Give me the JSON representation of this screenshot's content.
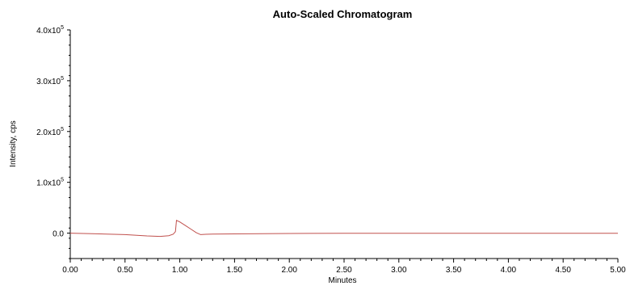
{
  "chart_data": {
    "type": "line",
    "title": "Auto-Scaled Chromatogram",
    "xlabel": "Minutes",
    "ylabel": "Intensity, cps",
    "xlim": [
      0,
      5
    ],
    "ylim": [
      -50000,
      400000
    ],
    "grid": false,
    "x_ticks": [
      {
        "value": 0.0,
        "label": "0.00"
      },
      {
        "value": 0.5,
        "label": "0.50"
      },
      {
        "value": 1.0,
        "label": "1.00"
      },
      {
        "value": 1.5,
        "label": "1.50"
      },
      {
        "value": 2.0,
        "label": "2.00"
      },
      {
        "value": 2.5,
        "label": "2.50"
      },
      {
        "value": 3.0,
        "label": "3.00"
      },
      {
        "value": 3.5,
        "label": "3.50"
      },
      {
        "value": 4.0,
        "label": "4.00"
      },
      {
        "value": 4.5,
        "label": "4.50"
      },
      {
        "value": 5.0,
        "label": "5.00"
      }
    ],
    "y_ticks": [
      {
        "value": 0,
        "label": "0.0",
        "exp": ""
      },
      {
        "value": 100000,
        "label": "1.0x10",
        "exp": "5"
      },
      {
        "value": 200000,
        "label": "2.0x10",
        "exp": "5"
      },
      {
        "value": 300000,
        "label": "3.0x10",
        "exp": "5"
      },
      {
        "value": 400000,
        "label": "4.0x10",
        "exp": "5"
      }
    ],
    "series": [
      {
        "color": "#c0504d",
        "x": [
          0.0,
          0.2,
          0.5,
          0.7,
          0.82,
          0.9,
          0.94,
          0.96,
          0.97,
          1.0,
          1.05,
          1.1,
          1.15,
          1.19,
          1.22,
          1.3,
          1.5,
          2.0,
          2.5,
          3.0,
          3.5,
          4.0,
          4.5,
          5.0
        ],
        "y": [
          0,
          -1000,
          -3000,
          -5500,
          -6500,
          -5000,
          -2000,
          3000,
          25000,
          22000,
          15000,
          8000,
          1000,
          -3000,
          -2500,
          -2000,
          -1500,
          -700,
          -400,
          -300,
          -300,
          -300,
          -300,
          -300
        ]
      }
    ]
  }
}
